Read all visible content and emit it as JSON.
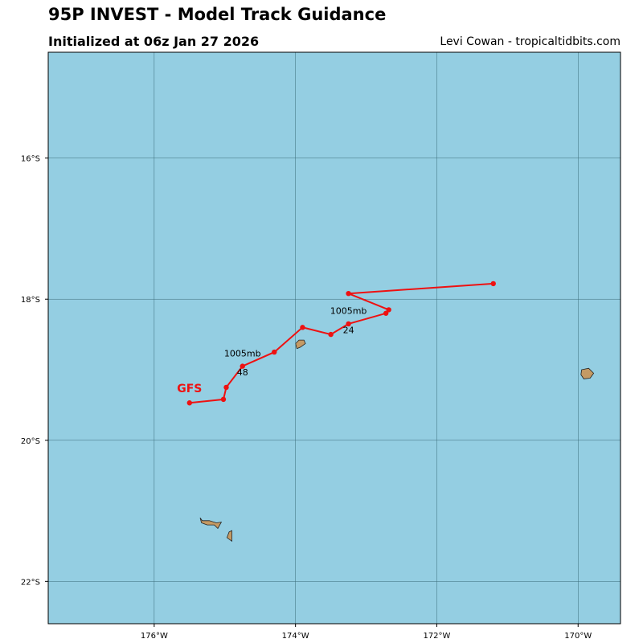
{
  "header": {
    "title": "95P INVEST - Model Track Guidance",
    "subtitle": "Initialized at 06z Jan 27 2026",
    "credit": "Levi Cowan - tropicaltidbits.com"
  },
  "map": {
    "ocean_color": "#94cee2",
    "land_color": "#c49a64",
    "lon_range": [
      -177.5,
      -169.4
    ],
    "lat_range": [
      -22.6,
      -14.5
    ],
    "lon_ticks": [
      {
        "value": -176,
        "label": "176°W"
      },
      {
        "value": -174,
        "label": "174°W"
      },
      {
        "value": -172,
        "label": "172°W"
      },
      {
        "value": -170,
        "label": "170°W"
      }
    ],
    "lat_ticks": [
      {
        "value": -16,
        "label": "16°S"
      },
      {
        "value": -18,
        "label": "18°S"
      },
      {
        "value": -20,
        "label": "20°S"
      },
      {
        "value": -22,
        "label": "22°S"
      }
    ]
  },
  "track": {
    "model": "GFS",
    "color": "#ee1111",
    "points": [
      {
        "lon": -171.2,
        "lat": -17.78
      },
      {
        "lon": -173.25,
        "lat": -17.92
      },
      {
        "lon": -172.68,
        "lat": -18.15
      },
      {
        "lon": -172.72,
        "lat": -18.2
      },
      {
        "lon": -173.25,
        "lat": -18.35
      },
      {
        "lon": -173.5,
        "lat": -18.5
      },
      {
        "lon": -173.9,
        "lat": -18.4
      },
      {
        "lon": -174.3,
        "lat": -18.75
      },
      {
        "lon": -174.75,
        "lat": -18.95
      },
      {
        "lon": -174.98,
        "lat": -19.25
      },
      {
        "lon": -175.02,
        "lat": -19.42
      },
      {
        "lon": -175.5,
        "lat": -19.47
      }
    ],
    "annotations": [
      {
        "text": "1005mb",
        "lon": -173.25,
        "lat": -18.21
      },
      {
        "text": "24",
        "lon": -173.25,
        "lat": -18.48
      },
      {
        "text": "1005mb",
        "lon": -174.75,
        "lat": -18.81
      },
      {
        "text": "48",
        "lon": -174.75,
        "lat": -19.08
      }
    ],
    "model_label_pos": {
      "lon": -175.5,
      "lat": -19.32
    }
  },
  "islands": [
    {
      "name": "island-vavau",
      "coords": [
        [
          -174.0,
          -18.63
        ],
        [
          -173.95,
          -18.58
        ],
        [
          -173.88,
          -18.58
        ],
        [
          -173.86,
          -18.63
        ],
        [
          -173.93,
          -18.68
        ],
        [
          -173.98,
          -18.7
        ]
      ]
    },
    {
      "name": "island-niue",
      "coords": [
        [
          -169.95,
          -19.0
        ],
        [
          -169.85,
          -18.98
        ],
        [
          -169.78,
          -19.05
        ],
        [
          -169.83,
          -19.12
        ],
        [
          -169.92,
          -19.13
        ],
        [
          -169.96,
          -19.07
        ]
      ]
    },
    {
      "name": "island-tongatapu",
      "coords": [
        [
          -175.35,
          -21.1
        ],
        [
          -175.32,
          -21.14
        ],
        [
          -175.22,
          -21.14
        ],
        [
          -175.12,
          -21.17
        ],
        [
          -175.05,
          -21.16
        ],
        [
          -175.1,
          -21.25
        ],
        [
          -175.15,
          -21.2
        ],
        [
          -175.25,
          -21.2
        ],
        [
          -175.33,
          -21.17
        ]
      ]
    },
    {
      "name": "island-eua",
      "coords": [
        [
          -174.94,
          -21.3
        ],
        [
          -174.9,
          -21.28
        ],
        [
          -174.9,
          -21.43
        ],
        [
          -174.97,
          -21.38
        ]
      ]
    }
  ]
}
